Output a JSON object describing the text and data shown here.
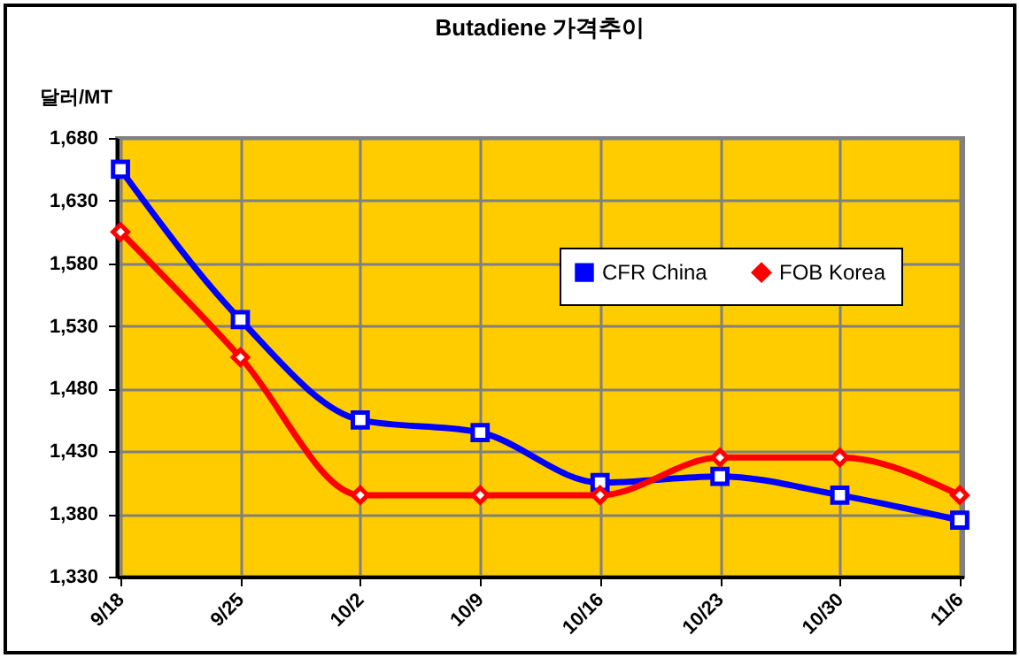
{
  "chart_data": {
    "type": "line",
    "title": "Butadiene 가격추이",
    "ylabel": "달러/MT",
    "categories": [
      "9/18",
      "9/25",
      "10/2",
      "10/9",
      "10/16",
      "10/23",
      "10/30",
      "11/6"
    ],
    "series": [
      {
        "name": "CFR China",
        "color": "#0000ff",
        "marker": "square",
        "values": [
          1655,
          1535,
          1455,
          1445,
          1405,
          1410,
          1395,
          1375
        ]
      },
      {
        "name": "FOB Korea",
        "color": "#ff0000",
        "marker": "diamond",
        "values": [
          1605,
          1505,
          1395,
          1395,
          1395,
          1425,
          1425,
          1395
        ]
      }
    ],
    "ylim": [
      1330,
      1680
    ],
    "yticks": [
      {
        "value": 1330,
        "label": "1,330"
      },
      {
        "value": 1380,
        "label": "1,380"
      },
      {
        "value": 1430,
        "label": "1,430"
      },
      {
        "value": 1480,
        "label": "1,480"
      },
      {
        "value": 1530,
        "label": "1,530"
      },
      {
        "value": 1580,
        "label": "1,580"
      },
      {
        "value": 1630,
        "label": "1,630"
      },
      {
        "value": 1680,
        "label": "1,680"
      }
    ],
    "grid": true,
    "legend": "top right",
    "line_style": "solid"
  }
}
